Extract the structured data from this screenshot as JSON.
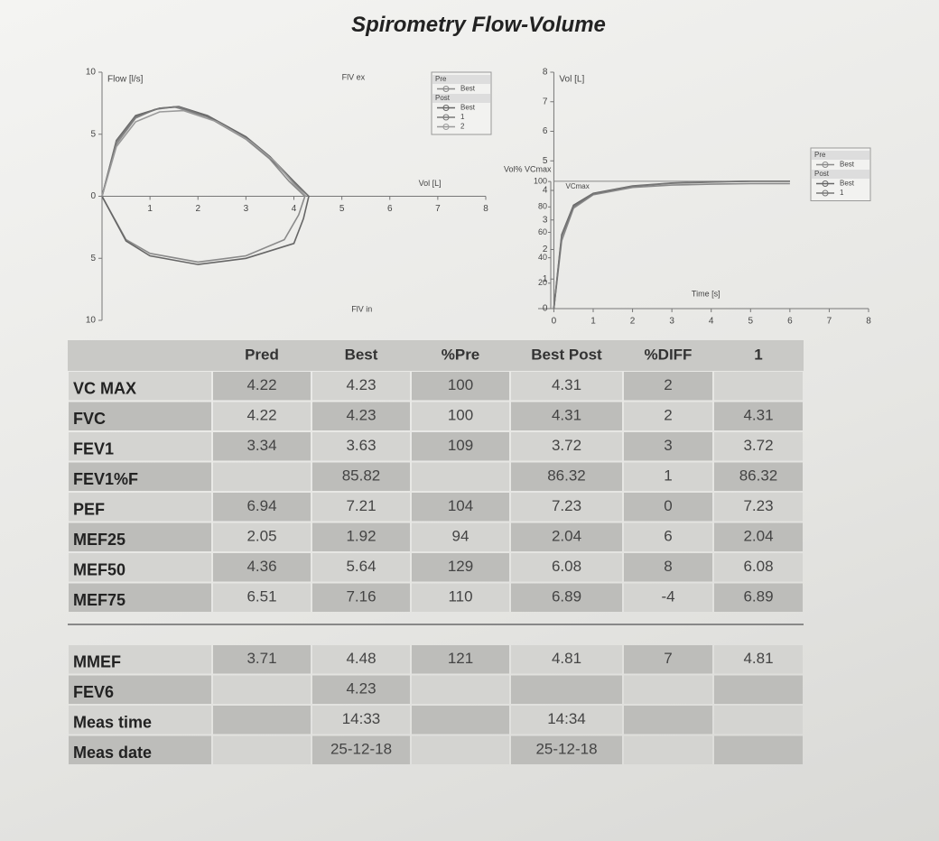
{
  "title": "Spirometry Flow-Volume",
  "chart_data": [
    {
      "type": "line",
      "y_label": "Flow [l/s]",
      "x_label": "Vol [L]",
      "top_label": "FlV ex",
      "bottom_label": "FlV in",
      "xlim": [
        0,
        8
      ],
      "xticks": [
        1,
        2,
        3,
        4,
        5,
        6,
        7,
        8
      ],
      "ylim": [
        -10,
        10
      ],
      "yticks": [
        {
          "value": -10,
          "label": "10"
        },
        {
          "value": -5,
          "label": "5"
        },
        0,
        5,
        10
      ],
      "series": [
        {
          "group": "Pre",
          "name": "Best",
          "color": "#8a8a8a",
          "x": [
            0,
            0.3,
            0.7,
            1.1,
            1.5,
            2.2,
            3.0,
            3.5,
            3.9,
            4.23,
            4.1,
            3.8,
            3.0,
            2.0,
            1.0,
            0.5,
            0
          ],
          "values": [
            0,
            4.2,
            6.3,
            7.0,
            7.21,
            6.4,
            4.6,
            3.0,
            1.2,
            0,
            -1.5,
            -3.5,
            -4.8,
            -5.3,
            -4.6,
            -3.5,
            0
          ]
        },
        {
          "group": "Post",
          "name": "Best",
          "color": "#666666",
          "x": [
            0,
            0.3,
            0.7,
            1.2,
            1.6,
            2.2,
            3.0,
            3.5,
            4.0,
            4.31,
            4.2,
            4.0,
            3.0,
            2.0,
            1.0,
            0.5,
            0
          ],
          "values": [
            0,
            4.5,
            6.5,
            7.1,
            7.23,
            6.5,
            4.8,
            3.2,
            1.2,
            0,
            -1.8,
            -3.8,
            -5.0,
            -5.5,
            -4.8,
            -3.6,
            0
          ]
        },
        {
          "group": "Post",
          "name": "1",
          "color": "#777777",
          "x": [
            0,
            0.3,
            0.7,
            1.2,
            1.6,
            2.2,
            3.0,
            3.5,
            4.0,
            4.31
          ],
          "values": [
            0,
            4.4,
            6.4,
            7.1,
            7.2,
            6.4,
            4.7,
            3.1,
            1.1,
            0
          ]
        },
        {
          "group": "Post",
          "name": "2",
          "color": "#9a9a9a",
          "x": [
            0,
            0.3,
            0.7,
            1.2,
            1.7,
            2.4,
            3.1,
            3.6,
            4.0,
            4.25
          ],
          "values": [
            0,
            4.0,
            6.0,
            6.8,
            6.9,
            6.0,
            4.4,
            2.8,
            1.0,
            0
          ]
        }
      ]
    },
    {
      "type": "line",
      "y_label": "Vol [L]",
      "y2_label": "Vol% VCmax",
      "x_label": "Time [s]",
      "annotation": "VCmax",
      "xlim": [
        -0.4,
        8
      ],
      "xticks": [
        0,
        1,
        2,
        3,
        4,
        5,
        6,
        7,
        8
      ],
      "ylim": [
        0,
        8
      ],
      "yticks": [
        0,
        1,
        2,
        3,
        4,
        5,
        6,
        7,
        8
      ],
      "y2lim": [
        0,
        186
      ],
      "y2ticks": [
        20,
        40,
        60,
        80,
        100
      ],
      "series": [
        {
          "group": "Pre",
          "name": "Best",
          "color": "#8a8a8a",
          "x": [
            0,
            0.2,
            0.5,
            1,
            2,
            3,
            4,
            5,
            6
          ],
          "values": [
            0,
            2.3,
            3.4,
            3.85,
            4.1,
            4.18,
            4.21,
            4.23,
            4.23
          ]
        },
        {
          "group": "Post",
          "name": "Best",
          "color": "#666666",
          "x": [
            0,
            0.2,
            0.5,
            1,
            2,
            3,
            4,
            5,
            6
          ],
          "values": [
            0,
            2.5,
            3.5,
            3.9,
            4.15,
            4.25,
            4.29,
            4.31,
            4.31
          ]
        },
        {
          "group": "Post",
          "name": "1",
          "color": "#777777",
          "x": [
            0,
            0.2,
            0.5,
            1,
            2,
            3,
            4,
            5,
            6
          ],
          "values": [
            0,
            2.45,
            3.45,
            3.88,
            4.14,
            4.24,
            4.28,
            4.31,
            4.31
          ]
        }
      ]
    }
  ],
  "table": {
    "header": [
      "Pred",
      "Best",
      "%Pre",
      "Best Post",
      "%DIFF",
      "1"
    ],
    "rows": [
      {
        "label": "VC MAX",
        "cells": [
          4.22,
          4.23,
          100,
          4.31,
          2,
          null
        ]
      },
      {
        "label": "FVC",
        "cells": [
          4.22,
          4.23,
          100,
          4.31,
          2,
          4.31
        ]
      },
      {
        "label": "FEV1",
        "cells": [
          3.34,
          3.63,
          109,
          3.72,
          3,
          3.72
        ]
      },
      {
        "label": "FEV1%F",
        "cells": [
          null,
          85.82,
          null,
          86.32,
          1,
          86.32
        ]
      },
      {
        "label": "PEF",
        "cells": [
          6.94,
          7.21,
          104,
          7.23,
          0,
          7.23
        ]
      },
      {
        "label": "MEF25",
        "cells": [
          2.05,
          1.92,
          94,
          2.04,
          6,
          2.04
        ]
      },
      {
        "label": "MEF50",
        "cells": [
          4.36,
          5.64,
          129,
          6.08,
          8,
          6.08
        ]
      },
      {
        "label": "MEF75",
        "cells": [
          6.51,
          7.16,
          110,
          6.89,
          -4,
          6.89
        ]
      }
    ],
    "rows2": [
      {
        "label": "MMEF",
        "cells": [
          3.71,
          4.48,
          121,
          4.81,
          7,
          4.81
        ]
      },
      {
        "label": "FEV6",
        "cells": [
          null,
          4.23,
          null,
          null,
          null,
          null
        ]
      },
      {
        "label": "Meas time",
        "cells": [
          null,
          "14:33",
          null,
          "14:34",
          null,
          null
        ]
      },
      {
        "label": "Meas date",
        "cells": [
          null,
          "25-12-18",
          null,
          "25-12-18",
          null,
          null
        ]
      }
    ]
  }
}
